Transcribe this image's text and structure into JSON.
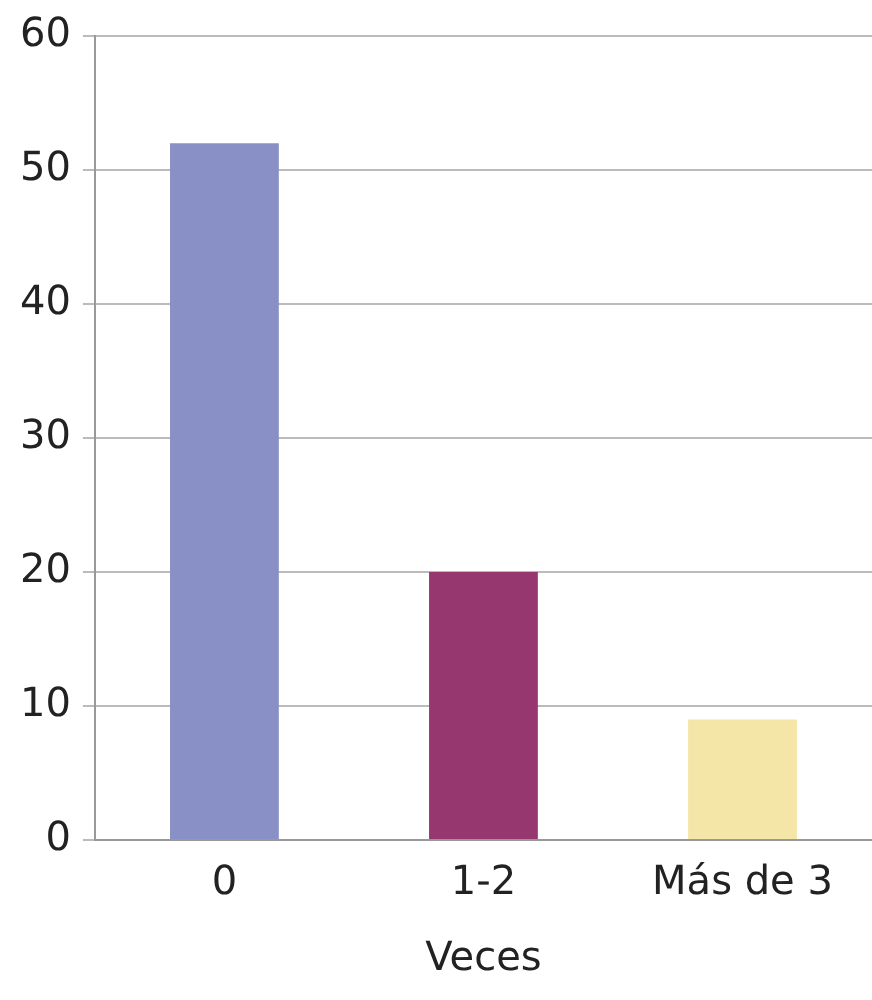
{
  "chart_data": {
    "type": "bar",
    "xlabel": "Veces",
    "categories": [
      "0",
      "1-2",
      "Más de 3"
    ],
    "values": [
      52,
      20,
      9
    ],
    "colors": [
      "#8890c6",
      "#97376f",
      "#f3e6a7"
    ],
    "ylim": [
      0,
      60
    ],
    "yticks": [
      0,
      10,
      20,
      30,
      40,
      50,
      60
    ],
    "grid": "y",
    "legend": false
  }
}
